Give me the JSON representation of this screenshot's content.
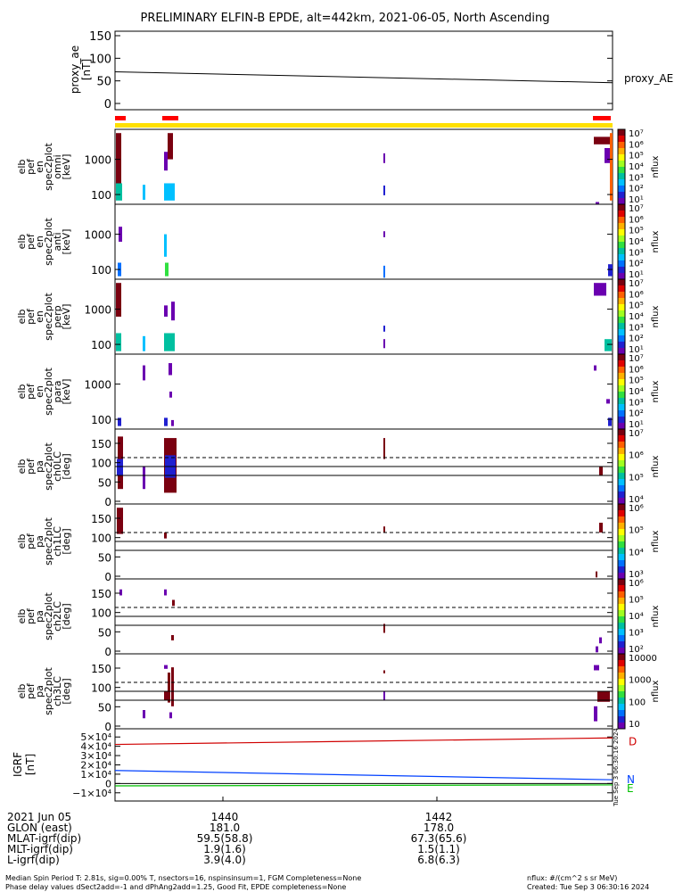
{
  "title": "PRELIMINARY ELFIN-B EPDE, alt=442km, 2021-06-05, North Ascending",
  "colors": {
    "status_bar": "#ff0000",
    "coverage_bar": "#ffe000",
    "bx": "#d00000",
    "by": "#0040ff",
    "bz": "#00c000"
  },
  "panels": {
    "ae": {
      "ylabel1": "proxy_ae",
      "ylabel2": "[nT]",
      "legend": "proxy_AE",
      "ticks": [
        "150",
        "100",
        "50",
        "0"
      ]
    },
    "p1": {
      "ylabel": [
        "elb",
        "pef",
        "en",
        "spec2plot",
        "omni",
        "[keV]"
      ],
      "ticks": [
        "1000",
        "100"
      ]
    },
    "p2": {
      "ylabel": [
        "elb",
        "pef",
        "en",
        "spec2plot",
        "anti",
        "[keV]"
      ],
      "ticks": [
        "1000",
        "100"
      ]
    },
    "p3": {
      "ylabel": [
        "elb",
        "pef",
        "en",
        "spec2plot",
        "perp",
        "[keV]"
      ],
      "ticks": [
        "1000",
        "100"
      ]
    },
    "p4": {
      "ylabel": [
        "elb",
        "pef",
        "en",
        "spec2plot",
        "para",
        "[keV]"
      ],
      "ticks": [
        "1000",
        "100"
      ]
    },
    "p5": {
      "ylabel": [
        "elb",
        "pef",
        "pa",
        "spec2plot",
        "ch0LC",
        "[deg]"
      ],
      "ticks": [
        "150",
        "100",
        "50",
        "0"
      ]
    },
    "p6": {
      "ylabel": [
        "elb",
        "pef",
        "pa",
        "spec2plot",
        "ch1LC",
        "[deg]"
      ],
      "ticks": [
        "150",
        "100",
        "50",
        "0"
      ]
    },
    "p7": {
      "ylabel": [
        "elb",
        "pef",
        "pa",
        "spec2plot",
        "ch2LC",
        "[deg]"
      ],
      "ticks": [
        "150",
        "100",
        "50",
        "0"
      ]
    },
    "p8": {
      "ylabel": [
        "elb",
        "pef",
        "pa",
        "spec2plot",
        "ch3LC",
        "[deg]"
      ],
      "ticks": [
        "150",
        "100",
        "50",
        "0"
      ]
    },
    "grf": {
      "ylabel1": "IGRF",
      "ylabel2": "[nT]",
      "ticks": [
        "5×10⁴",
        "4×10⁴",
        "3×10⁴",
        "2×10⁴",
        "1×10⁴",
        "0",
        "−1×10⁴"
      ],
      "labels": [
        "D",
        "N",
        "E"
      ]
    }
  },
  "colorbars": {
    "unit": "nflux",
    "cb1": [
      "10⁷",
      "10⁶",
      "10⁵",
      "10⁴",
      "10³",
      "10²",
      "10¹"
    ],
    "cb2": [
      "10⁷",
      "10⁶",
      "10⁵",
      "10⁴",
      "10³",
      "10²",
      "10¹"
    ],
    "cb3": [
      "10⁷",
      "10⁶",
      "10⁵",
      "10⁴",
      "10³",
      "10²",
      "10¹"
    ],
    "cb4": [
      "10⁷",
      "10⁶",
      "10⁵",
      "10⁴",
      "10³",
      "10²",
      "10¹"
    ],
    "cb5": [
      "10⁷",
      "10⁶",
      "10⁵",
      "10⁴"
    ],
    "cb6": [
      "10⁶",
      "10⁵",
      "10⁴",
      "10³"
    ],
    "cb7": [
      "10⁶",
      "10⁵",
      "10⁴",
      "10³",
      "10²"
    ],
    "cb8": [
      "10000",
      "1000",
      "100",
      "10"
    ]
  },
  "side_stamp": "Tue Sep 3 06:30:16 2024",
  "xaxis": {
    "rows": [
      {
        "label": "2021 Jun 05",
        "v1": "1440",
        "v2": "1442"
      },
      {
        "label": "GLON (east)",
        "v1": "181.0",
        "v2": "178.0"
      },
      {
        "label": "MLAT-igrf(dip)",
        "v1": "59.5(58.8)",
        "v2": "67.3(65.6)"
      },
      {
        "label": "MLT-igrf(dip)",
        "v1": "1.9(1.6)",
        "v2": "1.5(1.1)"
      },
      {
        "label": "L-igrf(dip)",
        "v1": "3.9(4.0)",
        "v2": "6.8(6.3)"
      }
    ]
  },
  "footer": {
    "line1": "Median Spin Period T: 2.81s, sig=0.00% T, nsectors=16, nspinsinsum=1, FGM Completeness=None",
    "line2": "Phase delay values dSect2add=-1 and dPhAng2add=1.25, Good Fit, EPDE completeness=None",
    "units": "nflux: #/(cm^2 s sr MeV)",
    "created": "Created: Tue Sep  3 06:30:16 2024"
  },
  "chart_data": {
    "type": "heatmap",
    "x_time_labels": [
      "1440",
      "1442"
    ],
    "ae": {
      "y_range": [
        0,
        150
      ],
      "start": 70,
      "end": 46
    },
    "spectrograms": {
      "energy_ylim_keV": [
        55,
        7000
      ],
      "pa_ylim_deg": [
        0,
        180
      ],
      "zlim_nflux": [
        10,
        10000000
      ]
    },
    "pa_reference_deg": {
      "dashed": 113,
      "solid": [
        90,
        67
      ]
    },
    "igrf": {
      "y_range": [
        -15000,
        55000
      ],
      "series": [
        {
          "name": "D",
          "start": 42000,
          "end": 49000
        },
        {
          "name": "N",
          "start": 14000,
          "end": 4000
        },
        {
          "name": "E",
          "start": -2500,
          "end": -1500
        }
      ]
    }
  }
}
